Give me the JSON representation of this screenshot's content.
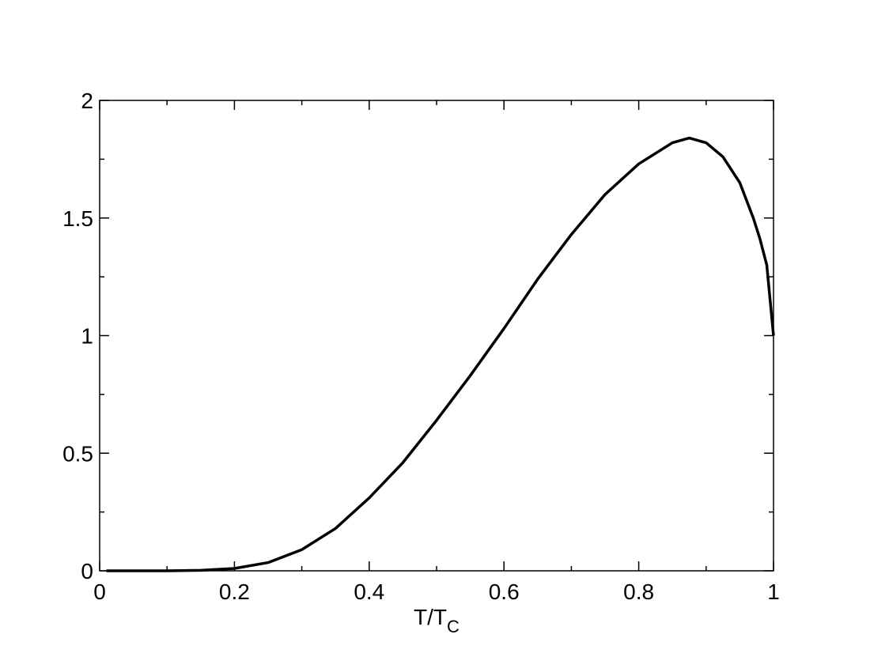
{
  "chart_data": {
    "type": "line",
    "xlabel": {
      "text": "T/T",
      "subscript": "C"
    },
    "x": [
      0.01,
      0.1,
      0.15,
      0.2,
      0.25,
      0.3,
      0.35,
      0.4,
      0.45,
      0.5,
      0.55,
      0.6,
      0.65,
      0.7,
      0.75,
      0.8,
      0.85,
      0.875,
      0.9,
      0.925,
      0.95,
      0.97,
      0.98,
      0.99,
      1.0
    ],
    "series": [
      {
        "color": "#000000",
        "values": [
          0,
          0,
          0.002,
          0.01,
          0.035,
          0.09,
          0.18,
          0.31,
          0.46,
          0.64,
          0.83,
          1.03,
          1.24,
          1.43,
          1.6,
          1.73,
          1.82,
          1.84,
          1.82,
          1.76,
          1.65,
          1.5,
          1.41,
          1.3,
          1.0
        ]
      }
    ],
    "xlim": [
      0,
      1
    ],
    "ylim": [
      0,
      2
    ],
    "xticks": [
      0,
      0.2,
      0.4,
      0.6,
      0.8,
      1
    ],
    "yticks": [
      0,
      0.5,
      1,
      1.5,
      2
    ],
    "xminorticks": [
      0.1,
      0.3,
      0.5,
      0.7,
      0.9
    ],
    "yminorticks": [
      0.25,
      0.75,
      1.25,
      1.75
    ]
  }
}
